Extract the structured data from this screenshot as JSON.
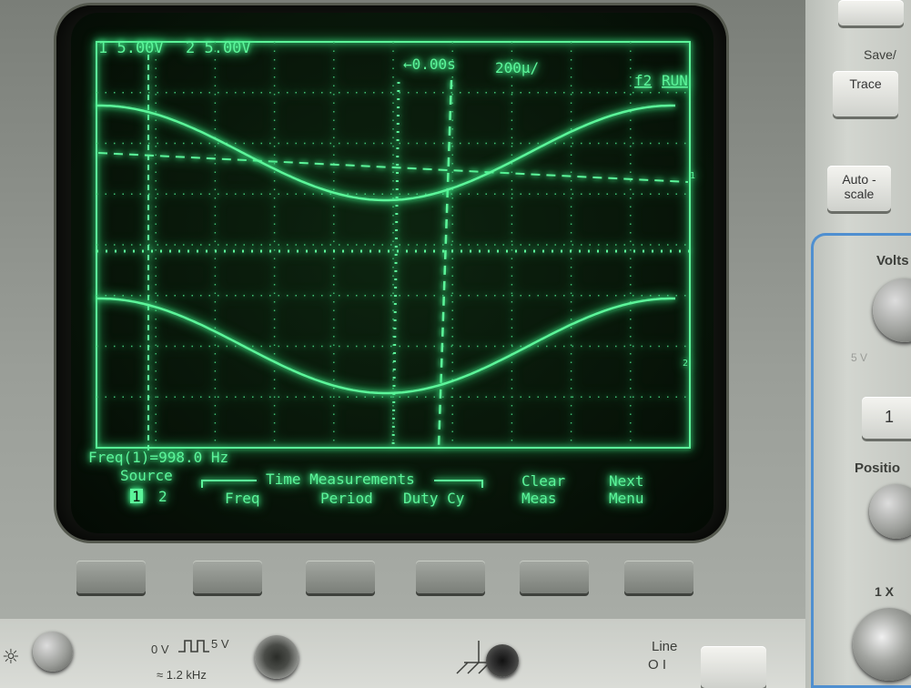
{
  "scope": {
    "ch1_scale": "1 5.00V",
    "ch2_scale": "2 5.00V",
    "time_delay": "←0.00s",
    "time_div": "200µ/",
    "trigger": "f2",
    "run_state": "RUN",
    "measurement": "Freq(1)=998.0 Hz",
    "ch1_marker": "1",
    "ch2_marker": "2",
    "softkeys": {
      "source_title": "Source",
      "source_opt1": "1",
      "source_opt2": "2",
      "group_title": "Time Measurements",
      "freq": "Freq",
      "period": "Period",
      "duty": "Duty Cy",
      "clear_1": "Clear",
      "clear_2": "Meas",
      "next_1": "Next",
      "next_2": "Menu"
    }
  },
  "panel": {
    "save_label": "Save/",
    "trace_button": "Trace",
    "autoscale_1": "Auto -",
    "autoscale_2": "scale",
    "volts_label": "Volts",
    "volts_value": "5 V",
    "ch_button": "1",
    "position_label": "Positio",
    "probe_ratio": "1 X",
    "line_label": "Line",
    "line_symbol": "O I",
    "cal_label": "0 V",
    "cal_volt": "5 V",
    "cal_freq": "≈ 1.2 kHz"
  },
  "colors": {
    "trace": "#5cf59a",
    "grid": "#3fbf73",
    "screen_bg": "#081509",
    "bezel": "#8d928c"
  }
}
